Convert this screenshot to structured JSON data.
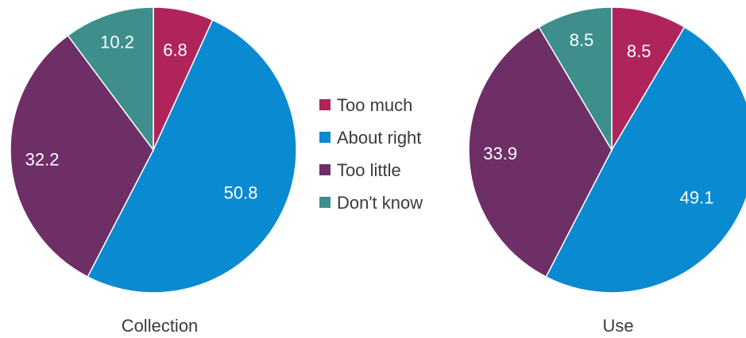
{
  "legend": {
    "position": "center",
    "items": [
      {
        "label": "Too much",
        "color": "#B0245C"
      },
      {
        "label": "About right",
        "color": "#0A8AD0"
      },
      {
        "label": "Too little",
        "color": "#6E2E66"
      },
      {
        "label": "Don't know",
        "color": "#3E8F8B"
      }
    ]
  },
  "chart_data": [
    {
      "type": "pie",
      "title": "Collection",
      "categories": [
        "Too much",
        "About right",
        "Too little",
        "Don't know"
      ],
      "values": [
        6.8,
        50.8,
        32.2,
        10.2
      ],
      "value_labels": [
        "6.8",
        "50.8",
        "32.2",
        "10.2"
      ]
    },
    {
      "type": "pie",
      "title": "Use",
      "categories": [
        "Too much",
        "About right",
        "Too little",
        "Don't know"
      ],
      "values": [
        8.5,
        49.1,
        33.9,
        8.5
      ],
      "value_labels": [
        "8.5",
        "49.1",
        "33.9",
        "8.5"
      ]
    }
  ]
}
